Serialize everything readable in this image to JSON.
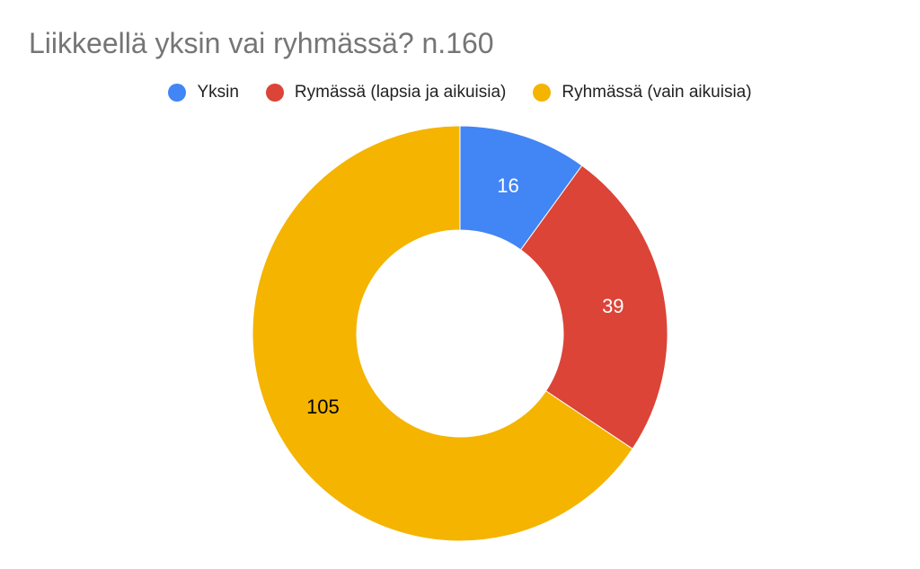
{
  "chart_data": {
    "type": "pie",
    "donut": true,
    "title": "Liikkeellä yksin vai ryhmässä? n.160",
    "legend_placement": "top",
    "slices": [
      {
        "label": "Yksin",
        "value": 16,
        "color": "#4285F4",
        "label_color": "#FFFFFF"
      },
      {
        "label": "Rymässä (lapsia ja aikuisia)",
        "value": 39,
        "color": "#DB4437",
        "label_color": "#FFFFFF"
      },
      {
        "label": "Ryhmässä (vain aikuisia)",
        "value": 105,
        "color": "#F4B400",
        "label_color": "#000000"
      }
    ]
  }
}
